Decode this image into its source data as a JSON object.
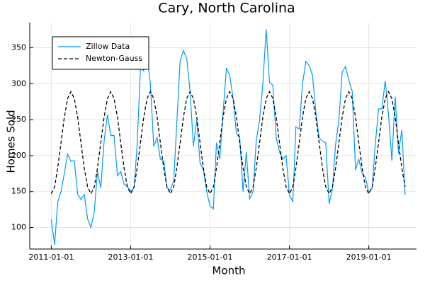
{
  "chart_data": {
    "type": "line",
    "title": "Cary, North Carolina",
    "x_label": "Month",
    "y_label": "Homes Sold",
    "x": [
      "2011-01-01",
      "2011-02-01",
      "2011-03-01",
      "2011-04-01",
      "2011-05-01",
      "2011-06-01",
      "2011-07-01",
      "2011-08-01",
      "2011-09-01",
      "2011-10-01",
      "2011-11-01",
      "2011-12-01",
      "2012-01-01",
      "2012-02-01",
      "2012-03-01",
      "2012-04-01",
      "2012-05-01",
      "2012-06-01",
      "2012-07-01",
      "2012-08-01",
      "2012-09-01",
      "2012-10-01",
      "2012-11-01",
      "2012-12-01",
      "2013-01-01",
      "2013-02-01",
      "2013-03-01",
      "2013-04-01",
      "2013-05-01",
      "2013-06-01",
      "2013-07-01",
      "2013-08-01",
      "2013-09-01",
      "2013-10-01",
      "2013-11-01",
      "2013-12-01",
      "2014-01-01",
      "2014-02-01",
      "2014-03-01",
      "2014-04-01",
      "2014-05-01",
      "2014-06-01",
      "2014-07-01",
      "2014-08-01",
      "2014-09-01",
      "2014-10-01",
      "2014-11-01",
      "2014-12-01",
      "2015-01-01",
      "2015-02-01",
      "2015-03-01",
      "2015-04-01",
      "2015-05-01",
      "2015-06-01",
      "2015-07-01",
      "2015-08-01",
      "2015-09-01",
      "2015-10-01",
      "2015-11-01",
      "2015-12-01",
      "2016-01-01",
      "2016-02-01",
      "2016-03-01",
      "2016-04-01",
      "2016-05-01",
      "2016-06-01",
      "2016-07-01",
      "2016-08-01",
      "2016-09-01",
      "2016-10-01",
      "2016-11-01",
      "2016-12-01",
      "2017-01-01",
      "2017-02-01",
      "2017-03-01",
      "2017-04-01",
      "2017-05-01",
      "2017-06-01",
      "2017-07-01",
      "2017-08-01",
      "2017-09-01",
      "2017-10-01",
      "2017-11-01",
      "2017-12-01",
      "2018-01-01",
      "2018-02-01",
      "2018-03-01",
      "2018-04-01",
      "2018-05-01",
      "2018-06-01",
      "2018-07-01",
      "2018-08-01",
      "2018-09-01",
      "2018-10-01",
      "2018-11-01",
      "2018-12-01",
      "2019-01-01",
      "2019-02-01",
      "2019-03-01",
      "2019-04-01",
      "2019-05-01",
      "2019-06-01",
      "2019-07-01",
      "2019-08-01",
      "2019-09-01",
      "2019-10-01",
      "2019-11-01",
      "2019-12-01"
    ],
    "series": [
      {
        "name": "Zillow Data",
        "color": "#009afa",
        "dash": false,
        "values": [
          111,
          76,
          135,
          150,
          175,
          202,
          192,
          193,
          146,
          139,
          146,
          112,
          100,
          122,
          178,
          155,
          220,
          257,
          228,
          228,
          172,
          178,
          160,
          157,
          150,
          155,
          215,
          322,
          318,
          340,
          300,
          213,
          225,
          195,
          193,
          155,
          152,
          165,
          245,
          332,
          346,
          335,
          290,
          213,
          250,
          190,
          180,
          150,
          130,
          126,
          218,
          195,
          260,
          322,
          312,
          280,
          230,
          226,
          150,
          205,
          140,
          150,
          220,
          250,
          300,
          376,
          302,
          298,
          225,
          205,
          195,
          200,
          145,
          136,
          240,
          237,
          300,
          331,
          325,
          312,
          260,
          225,
          220,
          218,
          133,
          155,
          215,
          250,
          316,
          324,
          305,
          290,
          180,
          195,
          175,
          170,
          148,
          155,
          215,
          265,
          265,
          304,
          258,
          193,
          282,
          203,
          236,
          145
        ]
      },
      {
        "name": "Newton-Gauss",
        "color": "#000000",
        "dash": true,
        "values": [
          147,
          156.5,
          182.5,
          218,
          253.5,
          279.5,
          289,
          279.5,
          253.5,
          218,
          182.5,
          156.5,
          147,
          156.5,
          182.5,
          218,
          253.5,
          279.5,
          289,
          279.5,
          253.5,
          218,
          182.5,
          156.5,
          147,
          156.5,
          182.5,
          218,
          253.5,
          279.5,
          289,
          279.5,
          253.5,
          218,
          182.5,
          156.5,
          147,
          156.5,
          182.5,
          218,
          253.5,
          279.5,
          289,
          279.5,
          253.5,
          218,
          182.5,
          156.5,
          147,
          156.5,
          182.5,
          218,
          253.5,
          279.5,
          289,
          279.5,
          253.5,
          218,
          182.5,
          156.5,
          147,
          156.5,
          182.5,
          218,
          253.5,
          279.5,
          289,
          279.5,
          253.5,
          218,
          182.5,
          156.5,
          147,
          156.5,
          182.5,
          218,
          253.5,
          279.5,
          289,
          279.5,
          253.5,
          218,
          182.5,
          156.5,
          147,
          156.5,
          182.5,
          218,
          253.5,
          279.5,
          289,
          279.5,
          253.5,
          218,
          182.5,
          156.5,
          147,
          156.5,
          182.5,
          218,
          253.5,
          279.5,
          289,
          279.5,
          253.5,
          218,
          182.5,
          156.5
        ]
      }
    ],
    "xlim": [
      "2010-06-17",
      "2020-03-15"
    ],
    "xticks": [
      "2011-01-01",
      "2013-01-01",
      "2015-01-01",
      "2017-01-01",
      "2019-01-01"
    ],
    "ylim": [
      70,
      385
    ],
    "yticks": [
      100,
      150,
      200,
      250,
      300,
      350
    ],
    "grid": true,
    "legend": "top-left"
  }
}
